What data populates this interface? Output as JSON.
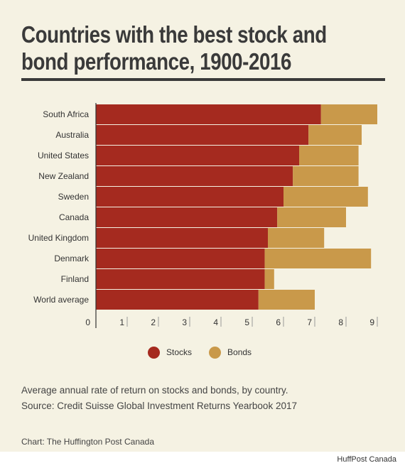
{
  "title_line1": "Countries with the best stock and",
  "title_line2": "bond performance, 1900-2016",
  "description": "Average annual rate of return on stocks and bonds, by country.",
  "source": "Source: Credit Suisse Global Investment Returns Yearbook 2017",
  "credit": "Chart: The Huffington Post Canada",
  "watermark": "HuffPost Canada",
  "colors": {
    "stocks": "#a52a1f",
    "bonds": "#c9994a",
    "background": "#f5f2e3",
    "text": "#3a3a3a"
  },
  "chart_data": {
    "type": "bar",
    "orientation": "horizontal",
    "stacked": true,
    "categories": [
      "South Africa",
      "Australia",
      "United States",
      "New Zealand",
      "Sweden",
      "Canada",
      "United Kingdom",
      "Denmark",
      "Finland",
      "World average"
    ],
    "series": [
      {
        "name": "Stocks",
        "values": [
          7.2,
          6.8,
          6.5,
          6.3,
          6.0,
          5.8,
          5.5,
          5.4,
          5.4,
          5.2
        ]
      },
      {
        "name": "Bonds",
        "values": [
          1.8,
          1.7,
          1.9,
          2.1,
          2.7,
          2.2,
          1.8,
          3.4,
          0.3,
          1.8
        ]
      }
    ],
    "xlim": [
      0,
      9
    ],
    "xticks": [
      "0",
      "1",
      "2",
      "3",
      "4",
      "5",
      "6",
      "7",
      "8",
      "9"
    ],
    "legend_position": "bottom-center",
    "grid": false
  }
}
